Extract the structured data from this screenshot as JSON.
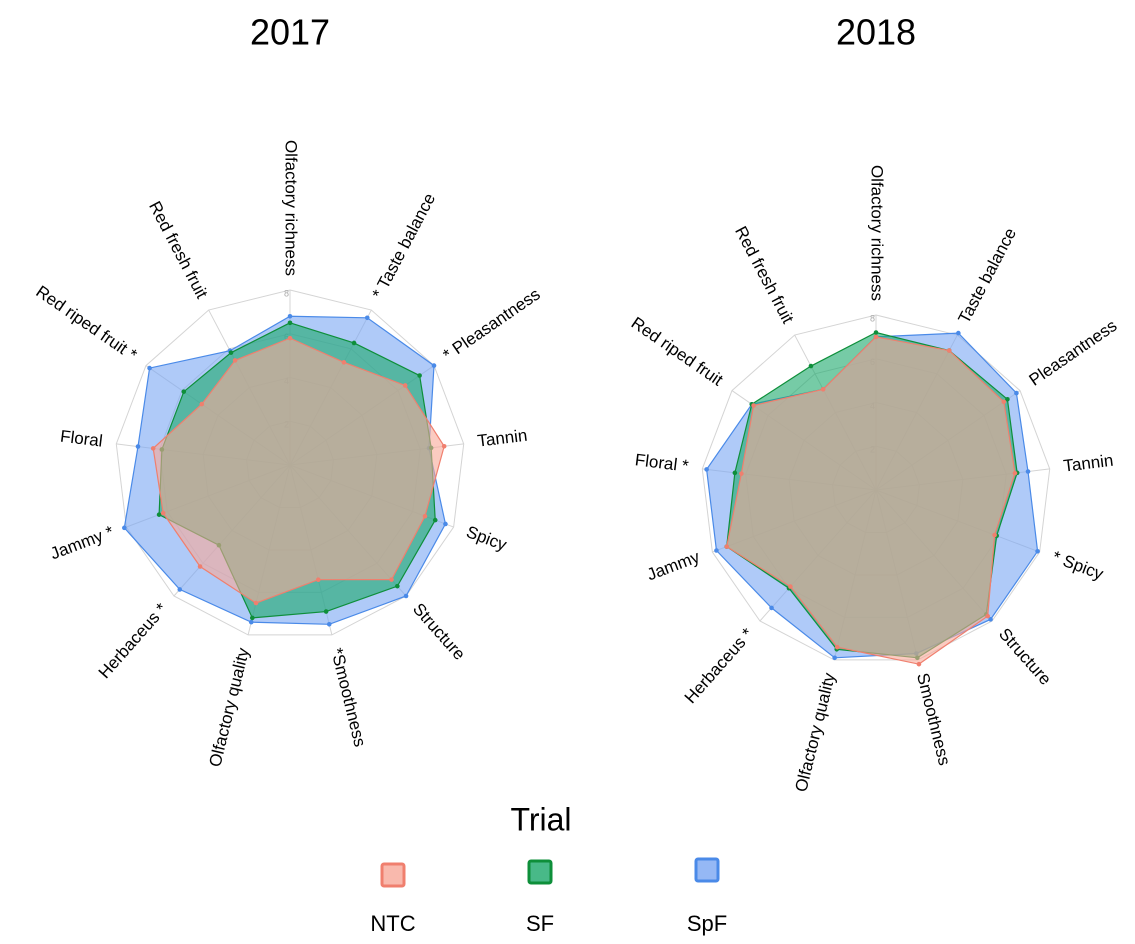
{
  "chart_data": [
    {
      "type": "radar",
      "title": "2017",
      "categories": [
        "Olfactory richness",
        "* Taste balance",
        "* Pleasantness",
        "Tannin",
        "Spicy",
        "Structure",
        "*Smoothness",
        "Olfactory quality",
        "Herbaceus *",
        "Jammy *",
        "Floral",
        "Red riped fruit *",
        "Red fresh fruit"
      ],
      "rlim": [
        0,
        8
      ],
      "rticks": [
        2,
        4,
        6,
        8
      ],
      "series": [
        {
          "name": "SpF",
          "color": "#4a8ae8",
          "values": [
            6.8,
            7.6,
            8.0,
            6.4,
            7.6,
            8.0,
            7.5,
            7.4,
            7.6,
            8.1,
            7.0,
            7.8,
            5.9
          ]
        },
        {
          "name": "SF",
          "color": "#0e8f3a",
          "values": [
            6.5,
            6.3,
            7.2,
            6.5,
            7.1,
            7.4,
            6.9,
            7.2,
            4.9,
            6.4,
            5.9,
            5.9,
            5.8
          ]
        },
        {
          "name": "NTC",
          "color": "#f07f6e",
          "values": [
            5.8,
            5.3,
            6.4,
            7.1,
            6.6,
            7.0,
            5.4,
            6.5,
            6.2,
            6.2,
            6.3,
            4.9,
            5.4
          ]
        }
      ]
    },
    {
      "type": "radar",
      "title": "2018",
      "categories": [
        "Olfactory richness",
        "Taste balance",
        "Pleasantness",
        "Tannin",
        "* Spicy",
        "Structure",
        "Smoothness",
        "Olfactory quality",
        "Herbaceus *",
        "Jammy",
        "Floral *",
        "Red riped fruit",
        "Red fresh fruit"
      ],
      "rlim": [
        0,
        8
      ],
      "rticks": [
        2,
        4,
        6,
        8
      ],
      "series": [
        {
          "name": "SpF",
          "color": "#4a8ae8",
          "values": [
            7.0,
            8.1,
            7.8,
            7.0,
            7.9,
            7.9,
            7.7,
            7.9,
            7.2,
            7.8,
            7.8,
            6.9,
            5.2
          ]
        },
        {
          "name": "SF",
          "color": "#0e8f3a",
          "values": [
            7.2,
            7.2,
            7.3,
            6.5,
            5.9,
            7.6,
            7.9,
            7.5,
            6.0,
            7.3,
            6.5,
            6.9,
            6.4
          ]
        },
        {
          "name": "NTC",
          "color": "#f07f6e",
          "values": [
            7.0,
            7.2,
            7.1,
            6.4,
            5.8,
            7.7,
            8.2,
            7.4,
            5.9,
            7.3,
            6.2,
            6.8,
            5.2
          ]
        }
      ]
    }
  ],
  "legend": {
    "title": "Trial"
  }
}
